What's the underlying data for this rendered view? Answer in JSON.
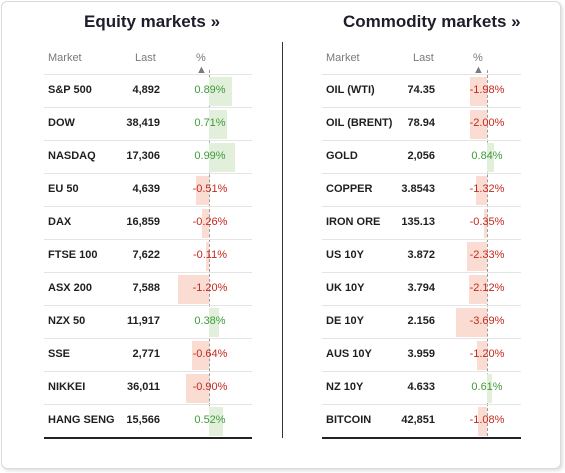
{
  "equity": {
    "title": "Equity markets »",
    "headers": {
      "market": "Market",
      "last": "Last",
      "pct": "% ▲"
    },
    "rows": [
      {
        "name": "S&P 500",
        "last": "4,892",
        "pct": "0.89%",
        "change": 0.89
      },
      {
        "name": "DOW",
        "last": "38,419",
        "pct": "0.71%",
        "change": 0.71
      },
      {
        "name": "NASDAQ",
        "last": "17,306",
        "pct": "0.99%",
        "change": 0.99
      },
      {
        "name": "EU 50",
        "last": "4,639",
        "pct": "-0.51%",
        "change": -0.51
      },
      {
        "name": "DAX",
        "last": "16,859",
        "pct": "-0.26%",
        "change": -0.26
      },
      {
        "name": "FTSE 100",
        "last": "7,622",
        "pct": "-0.11%",
        "change": -0.11
      },
      {
        "name": "ASX 200",
        "last": "7,588",
        "pct": "-1.20%",
        "change": -1.2
      },
      {
        "name": "NZX 50",
        "last": "11,917",
        "pct": "0.38%",
        "change": 0.38
      },
      {
        "name": "SSE",
        "last": "2,771",
        "pct": "-0.64%",
        "change": -0.64
      },
      {
        "name": "NIKKEI",
        "last": "36,011",
        "pct": "-0.90%",
        "change": -0.9
      },
      {
        "name": "HANG SENG",
        "last": "15,566",
        "pct": "0.52%",
        "change": 0.52
      }
    ]
  },
  "commodity": {
    "title": "Commodity markets »",
    "headers": {
      "market": "Market",
      "last": "Last",
      "pct": "% ▲"
    },
    "rows": [
      {
        "name": "OIL (WTI)",
        "last": "74.35",
        "pct": "-1.98%",
        "change": -1.98
      },
      {
        "name": "OIL (BRENT)",
        "last": "78.94",
        "pct": "-2.00%",
        "change": -2.0
      },
      {
        "name": "GOLD",
        "last": "2,056",
        "pct": "0.84%",
        "change": 0.84
      },
      {
        "name": "COPPER",
        "last": "3.8543",
        "pct": "-1.32%",
        "change": -1.32
      },
      {
        "name": "IRON ORE",
        "last": "135.13",
        "pct": "-0.35%",
        "change": -0.35
      },
      {
        "name": "US 10Y",
        "last": "3.872",
        "pct": "-2.33%",
        "change": -2.33
      },
      {
        "name": "UK 10Y",
        "last": "3.794",
        "pct": "-2.12%",
        "change": -2.12
      },
      {
        "name": "DE 10Y",
        "last": "2.156",
        "pct": "-3.69%",
        "change": -3.69
      },
      {
        "name": "AUS 10Y",
        "last": "3.959",
        "pct": "-1.20%",
        "change": -1.2
      },
      {
        "name": "NZ 10Y",
        "last": "4.633",
        "pct": "0.61%",
        "change": 0.61
      },
      {
        "name": "BITCOIN",
        "last": "42,851",
        "pct": "-1.08%",
        "change": -1.08
      }
    ]
  },
  "colors": {
    "positive_bar": "#e2f0db",
    "negative_bar": "#fadcd3",
    "positive_text": "#3f9a3a",
    "negative_text": "#c6281c"
  }
}
